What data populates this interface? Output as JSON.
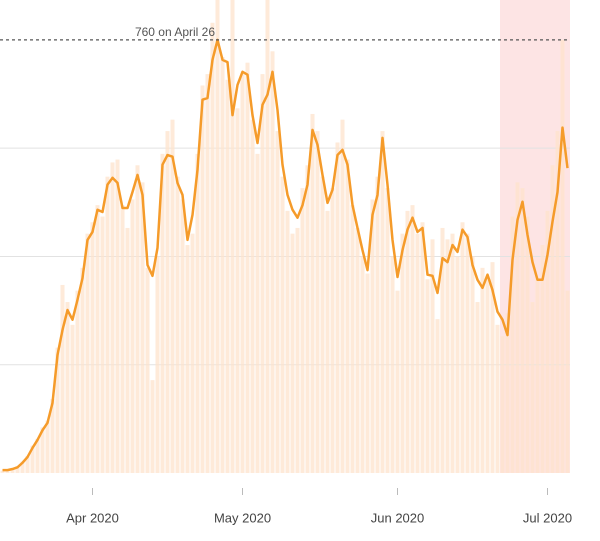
{
  "chart_data": {
    "type": "bar",
    "categories": [
      null,
      null,
      null,
      null,
      null,
      null,
      null,
      null,
      null,
      null,
      null,
      null,
      null,
      null,
      null,
      null,
      null,
      null,
      "Apr 2020",
      null,
      null,
      null,
      null,
      null,
      null,
      null,
      null,
      null,
      null,
      null,
      null,
      null,
      null,
      null,
      null,
      null,
      null,
      null,
      null,
      null,
      null,
      null,
      null,
      null,
      null,
      null,
      null,
      null,
      "May 2020",
      null,
      null,
      null,
      null,
      null,
      null,
      null,
      null,
      null,
      null,
      null,
      null,
      null,
      null,
      null,
      null,
      null,
      null,
      null,
      null,
      null,
      null,
      null,
      null,
      null,
      null,
      null,
      null,
      null,
      null,
      "Jun 2020",
      null,
      null,
      null,
      null,
      null,
      null,
      null,
      null,
      null,
      null,
      null,
      null,
      null,
      null,
      null,
      null,
      null,
      null,
      null,
      null,
      null,
      null,
      null,
      null,
      null,
      null,
      null,
      null,
      null,
      "Jul 2020",
      null,
      null,
      null,
      null
    ],
    "series": [
      {
        "type": "bar",
        "color": "#fde3cc",
        "values": [
          4,
          5,
          8,
          12,
          20,
          30,
          48,
          60,
          80,
          92,
          130,
          220,
          330,
          300,
          260,
          320,
          360,
          420,
          440,
          470,
          450,
          520,
          545,
          550,
          470,
          430,
          480,
          540,
          510,
          360,
          163,
          380,
          560,
          600,
          620,
          520,
          480,
          400,
          420,
          560,
          680,
          700,
          790,
          850,
          730,
          690,
          840,
          640,
          700,
          720,
          620,
          560,
          700,
          850,
          740,
          600,
          520,
          460,
          420,
          430,
          500,
          540,
          630,
          600,
          520,
          460,
          500,
          580,
          620,
          550,
          470,
          430,
          380,
          350,
          480,
          520,
          600,
          500,
          380,
          320,
          420,
          460,
          470,
          420,
          440,
          340,
          410,
          270,
          430,
          410,
          420,
          380,
          440,
          420,
          380,
          300,
          360,
          340,
          370,
          260,
          240,
          280,
          450,
          510,
          500,
          450,
          300,
          340,
          400,
          460,
          540,
          600,
          760,
          320
        ]
      },
      {
        "type": "line",
        "color": "#f59b2a",
        "values": [
          5,
          5,
          7,
          10,
          18,
          28,
          44,
          58,
          75,
          88,
          123,
          207,
          251,
          286,
          269,
          304,
          342,
          409,
          423,
          462,
          458,
          506,
          518,
          509,
          465,
          465,
          493,
          523,
          488,
          365,
          346,
          395,
          541,
          558,
          555,
          509,
          488,
          409,
          453,
          532,
          655,
          658,
          725,
          760,
          725,
          721,
          628,
          681,
          704,
          699,
          628,
          579,
          646,
          664,
          704,
          637,
          541,
          488,
          462,
          448,
          470,
          506,
          602,
          576,
          523,
          474,
          497,
          558,
          567,
          541,
          470,
          430,
          391,
          356,
          453,
          488,
          588,
          506,
          409,
          344,
          391,
          427,
          448,
          423,
          430,
          348,
          346,
          316,
          377,
          370,
          400,
          388,
          427,
          414,
          365,
          339,
          325,
          348,
          321,
          283,
          269,
          242,
          374,
          444,
          476,
          418,
          370,
          339,
          339,
          383,
          441,
          493,
          606,
          535
        ]
      }
    ],
    "ylim": [
      0,
      830
    ],
    "yticks": [
      190,
      380,
      570
    ],
    "grid": true,
    "shaded_range": [
      100,
      113
    ],
    "shaded_color": "#fde4e4",
    "reference_line": {
      "value": 760,
      "label": "760 on April 26"
    }
  }
}
